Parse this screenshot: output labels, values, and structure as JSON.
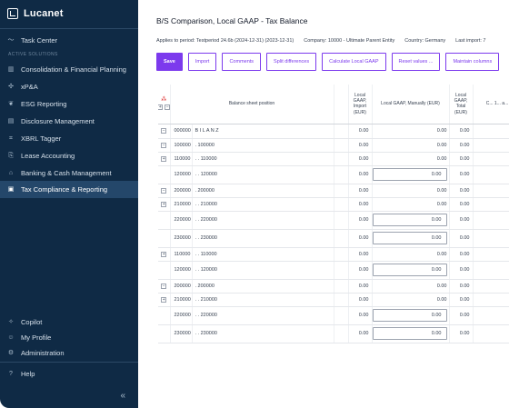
{
  "app": {
    "brand": "Lucanet"
  },
  "sidebar": {
    "task_center": "Task Center",
    "section_label": "ACTIVE SOLUTIONS",
    "items": [
      {
        "label": "Consolidation & Financial Planning",
        "icon": "chart-bars-icon"
      },
      {
        "label": "xP&A",
        "icon": "puzzle-icon"
      },
      {
        "label": "ESG Reporting",
        "icon": "leaf-icon"
      },
      {
        "label": "Disclosure Management",
        "icon": "document-icon"
      },
      {
        "label": "XBRL Tagger",
        "icon": "tag-icon"
      },
      {
        "label": "Lease Accounting",
        "icon": "lease-icon"
      },
      {
        "label": "Banking & Cash Management",
        "icon": "bank-icon"
      },
      {
        "label": "Tax Compliance & Reporting",
        "icon": "tax-icon"
      }
    ],
    "bottom": {
      "copilot": "Copilot",
      "my_profile": "My Profile",
      "administration": "Administration",
      "help": "Help",
      "collapse": "«"
    }
  },
  "main": {
    "title": "B/S Comparison, Local GAAP - Tax Balance",
    "info": {
      "period": "Applies to period:  Testperiod 24.6b (2024-12-31) (2023-12-31)",
      "company": "Company:  10000 - Ultimate Parent Entity",
      "country": "Country: Germany",
      "last_import": "Last import: 7"
    },
    "toolbar": {
      "save": "Save",
      "import": "Import",
      "comments": "Comments",
      "split_differences": "Split differences",
      "calculate_local_gaap": "Calculate Local GAAP",
      "reset_values": "Reset values ...",
      "maintain_columns": "Maintain columns"
    },
    "table": {
      "headers": {
        "position": "Balance sheet position",
        "import": "Local GAAP, Import (EUR)",
        "manual": "Local GAAP, Manually (EUR)",
        "total": "Local GAAP, Total (EUR)",
        "extra": "C... 1... a..."
      },
      "rows": [
        {
          "toggle": "−",
          "code": "000000",
          "name": "B I L A N Z",
          "import": "0.00",
          "manual": "0.00",
          "total": "0.00",
          "editable": false
        },
        {
          "toggle": "−",
          "code": "100000",
          "name": ". 100000",
          "import": "0.00",
          "manual": "0.00",
          "total": "0.00",
          "editable": false
        },
        {
          "toggle": "+",
          "code": "110000",
          "name": ". . 110000",
          "import": "0.00",
          "manual": "0.00",
          "total": "0.00",
          "editable": false
        },
        {
          "toggle": "",
          "code": "120000",
          "name": ". . 120000",
          "import": "0.00",
          "manual": "0.00",
          "total": "0.00",
          "editable": true
        },
        {
          "toggle": "−",
          "code": "200000",
          "name": ". 200000",
          "import": "0.00",
          "manual": "0.00",
          "total": "0.00",
          "editable": false
        },
        {
          "toggle": "+",
          "code": "210000",
          "name": ". . 210000",
          "import": "0.00",
          "manual": "0.00",
          "total": "0.00",
          "editable": false
        },
        {
          "toggle": "",
          "code": "220000",
          "name": ". . 220000",
          "import": "0.00",
          "manual": "0.00",
          "total": "0.00",
          "editable": true
        },
        {
          "toggle": "",
          "code": "230000",
          "name": ". . 230000",
          "import": "0.00",
          "manual": "0.00",
          "total": "0.00",
          "editable": true
        },
        {
          "toggle": "+",
          "code": "110000",
          "name": ". . 110000",
          "import": "0.00",
          "manual": "0.00",
          "total": "0.00",
          "editable": false
        },
        {
          "toggle": "",
          "code": "120000",
          "name": ". . 120000",
          "import": "0.00",
          "manual": "0.00",
          "total": "0.00",
          "editable": true
        },
        {
          "toggle": "−",
          "code": "200000",
          "name": ". 200000",
          "import": "0.00",
          "manual": "0.00",
          "total": "0.00",
          "editable": false
        },
        {
          "toggle": "+",
          "code": "210000",
          "name": ". . 210000",
          "import": "0.00",
          "manual": "0.00",
          "total": "0.00",
          "editable": false
        },
        {
          "toggle": "",
          "code": "220000",
          "name": ". . 220000",
          "import": "0.00",
          "manual": "0.00",
          "total": "0.00",
          "editable": true
        },
        {
          "toggle": "",
          "code": "230000",
          "name": ". . 230000",
          "import": "0.00",
          "manual": "0.00",
          "total": "0.00",
          "editable": true
        }
      ]
    }
  },
  "colors": {
    "sidebar_bg": "#0f2a45",
    "sidebar_active": "#24476a",
    "accent": "#7c3aed"
  }
}
